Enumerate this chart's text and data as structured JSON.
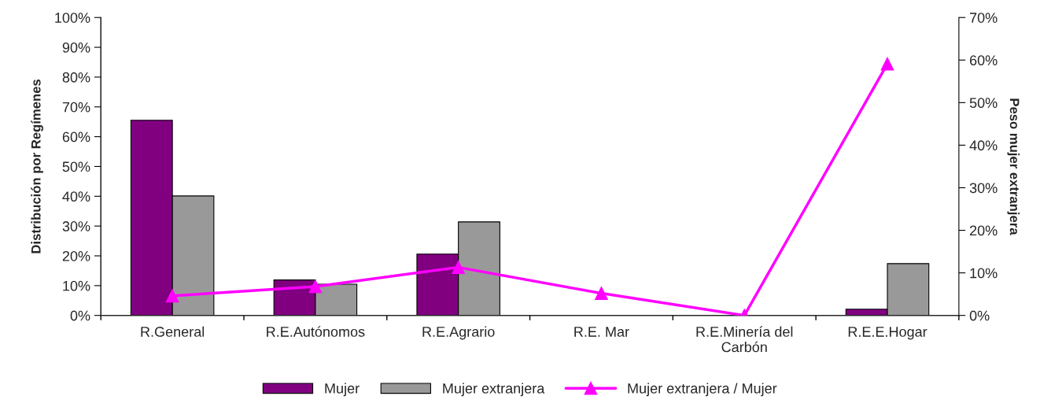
{
  "chart_data": {
    "type": "bar",
    "categories": [
      "R.General",
      "R.E.Autónomos",
      "R.E.Agrario",
      "R.E. Mar",
      "R.E.Minería del\nCarbón",
      "R.E.E.Hogar"
    ],
    "series": [
      {
        "name": "Mujer",
        "color": "#800080",
        "values": [
          65.5,
          11.9,
          20.6,
          0,
          0,
          2.1
        ]
      },
      {
        "name": "Mujer extranjera",
        "color": "#999999",
        "values": [
          40.1,
          10.5,
          31.4,
          0,
          0,
          17.4
        ]
      },
      {
        "name": "Mujer extranjera / Mujer",
        "type": "line",
        "axis": "y2",
        "color": "#ff00ff",
        "marker": "triangle",
        "line_style": "solid",
        "values": [
          4.6,
          6.8,
          11.3,
          5.2,
          0,
          59.1
        ]
      }
    ],
    "ylabel": "Distribución por Regímenes",
    "y2label": "Peso mujer extranjera",
    "ylim": [
      0,
      100
    ],
    "yticks": [
      {
        "value": 0,
        "label": "0%"
      },
      {
        "value": 10,
        "label": "10%"
      },
      {
        "value": 20,
        "label": "20%"
      },
      {
        "value": 30,
        "label": "30%"
      },
      {
        "value": 40,
        "label": "40%"
      },
      {
        "value": 50,
        "label": "50%"
      },
      {
        "value": 60,
        "label": "60%"
      },
      {
        "value": 70,
        "label": "70%"
      },
      {
        "value": 80,
        "label": "80%"
      },
      {
        "value": 90,
        "label": "90%"
      },
      {
        "value": 100,
        "label": "100%"
      }
    ],
    "y2lim": [
      0,
      70
    ],
    "y2ticks": [
      {
        "value": 0,
        "label": "0%"
      },
      {
        "value": 10,
        "label": "10%"
      },
      {
        "value": 20,
        "label": "20%"
      },
      {
        "value": 30,
        "label": "30%"
      },
      {
        "value": 40,
        "label": "40%"
      },
      {
        "value": 50,
        "label": "50%"
      },
      {
        "value": 60,
        "label": "60%"
      },
      {
        "value": 70,
        "label": "70%"
      }
    ],
    "grid": false,
    "legend": "bottom"
  }
}
